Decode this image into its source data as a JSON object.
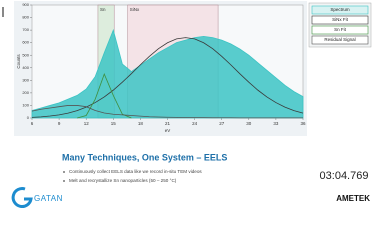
{
  "chart_data": {
    "type": "line",
    "x_label": "eV",
    "y_label": "Counts",
    "xlim": [
      6,
      36
    ],
    "xticks": [
      6,
      9,
      12,
      15,
      18,
      21,
      24,
      27,
      30,
      33,
      36
    ],
    "ylim": [
      0,
      900
    ],
    "yticks": [
      0,
      100,
      200,
      300,
      400,
      500,
      600,
      700,
      800,
      900
    ],
    "regions": [
      {
        "label": "Sn",
        "range": [
          13.3,
          15.1
        ],
        "color": "#d6ead6"
      },
      {
        "label": "SiNx",
        "range": [
          16.6,
          26.6
        ],
        "color": "#f3dde2"
      }
    ],
    "series": [
      {
        "name": "Spectrum",
        "color": "#3cc4c4",
        "area": true,
        "x": [
          6,
          7,
          8,
          9,
          10,
          11,
          12,
          13,
          14,
          15,
          16,
          17,
          18,
          19,
          20,
          21,
          22,
          23,
          24,
          25,
          26,
          27,
          28,
          29,
          30,
          31,
          32,
          33,
          34,
          35,
          36
        ],
        "values": [
          60,
          80,
          100,
          120,
          150,
          180,
          230,
          330,
          520,
          700,
          430,
          370,
          420,
          470,
          520,
          560,
          600,
          620,
          640,
          650,
          640,
          620,
          590,
          550,
          500,
          440,
          380,
          320,
          260,
          210,
          170
        ]
      },
      {
        "name": "SiNx Fit",
        "color": "#3a3a3a",
        "x": [
          6,
          7,
          8,
          9,
          10,
          11,
          12,
          13,
          14,
          15,
          16,
          17,
          18,
          19,
          20,
          21,
          22,
          23,
          24,
          25,
          26,
          27,
          28,
          29,
          30,
          31,
          32,
          33,
          34,
          35,
          36
        ],
        "values": [
          5,
          9,
          16,
          25,
          39,
          59,
          87,
          123,
          168,
          222,
          285,
          353,
          424,
          491,
          552,
          599,
          630,
          640,
          630,
          599,
          552,
          491,
          424,
          353,
          285,
          222,
          168,
          123,
          87,
          59,
          39
        ]
      },
      {
        "name": "Sn Fit",
        "color": "#3f8f3f",
        "x": [
          11,
          12,
          13,
          14,
          15,
          16,
          17
        ],
        "values": [
          0,
          20,
          150,
          350,
          180,
          30,
          0
        ]
      },
      {
        "name": "Residual Signal",
        "color": "#555555",
        "x": [
          6,
          7,
          8,
          9,
          10,
          11,
          12,
          13,
          14,
          15,
          16,
          17,
          18,
          19,
          20,
          21,
          22,
          23,
          24,
          25,
          26,
          27,
          28,
          29,
          30,
          31,
          32,
          33,
          34,
          35,
          36
        ],
        "values": [
          55,
          70,
          80,
          90,
          100,
          100,
          90,
          60,
          40,
          30,
          25,
          20,
          15,
          10,
          8,
          6,
          5,
          4,
          3,
          3,
          2,
          2,
          2,
          1,
          1,
          1,
          1,
          1,
          1,
          1,
          1
        ]
      }
    ]
  },
  "slide": {
    "title": "Many Techniques, One System – EELS",
    "bullets": [
      "Continuously collect EELS data like we record in-situ TEM videos",
      "Melt and recrystallize Sn nanoparticles (50 – 250 °C)"
    ],
    "timestamp": "03:04.769",
    "logo_left": "GATAN",
    "logo_right": "AMETEK"
  }
}
